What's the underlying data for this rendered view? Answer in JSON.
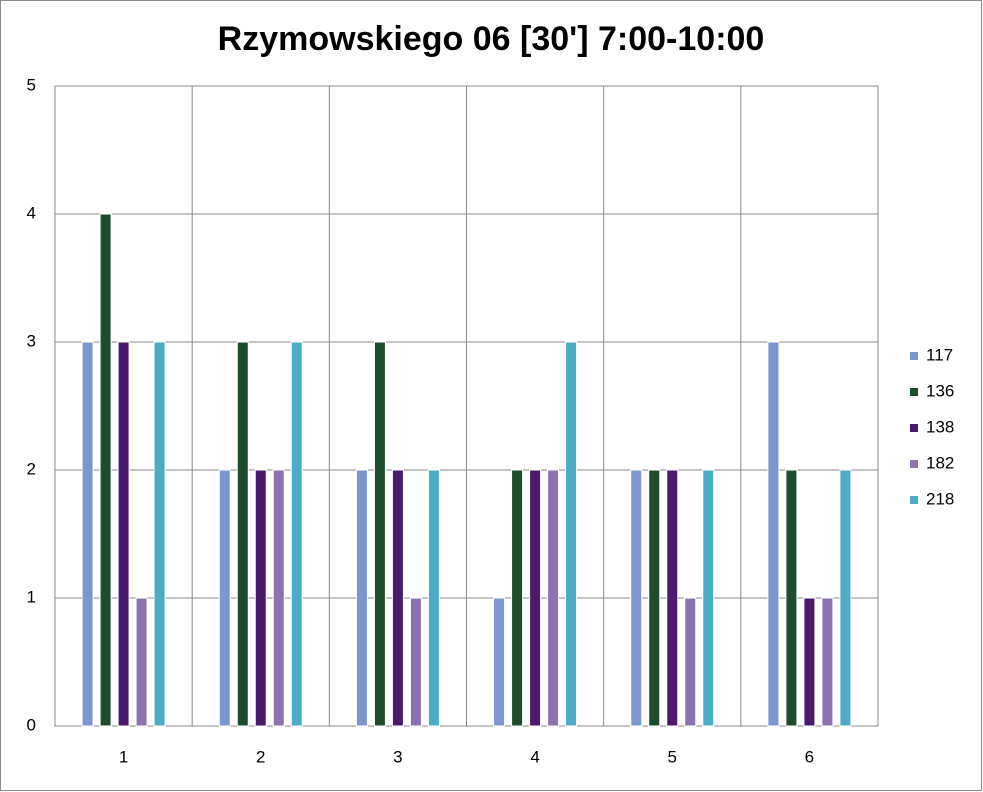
{
  "chart_data": {
    "type": "bar",
    "title": "Rzymowskiego 06 [30']   7:00-10:00",
    "categories": [
      "1",
      "2",
      "3",
      "4",
      "5",
      "6"
    ],
    "series": [
      {
        "name": "117",
        "color": "#7b96d0",
        "values": [
          3,
          2,
          2,
          1,
          2,
          3
        ]
      },
      {
        "name": "136",
        "color": "#1f4d2c",
        "values": [
          4,
          3,
          3,
          2,
          2,
          2
        ]
      },
      {
        "name": "138",
        "color": "#4a1a6e",
        "values": [
          3,
          2,
          2,
          2,
          2,
          1
        ]
      },
      {
        "name": "182",
        "color": "#8c72b0",
        "values": [
          1,
          2,
          1,
          2,
          1,
          1
        ]
      },
      {
        "name": "218",
        "color": "#4bacc6",
        "values": [
          3,
          3,
          2,
          3,
          2,
          2
        ]
      }
    ],
    "ylim": [
      0,
      5
    ],
    "yticks": [
      0,
      1,
      2,
      3,
      4,
      5
    ],
    "grid": true,
    "legend": "right"
  }
}
